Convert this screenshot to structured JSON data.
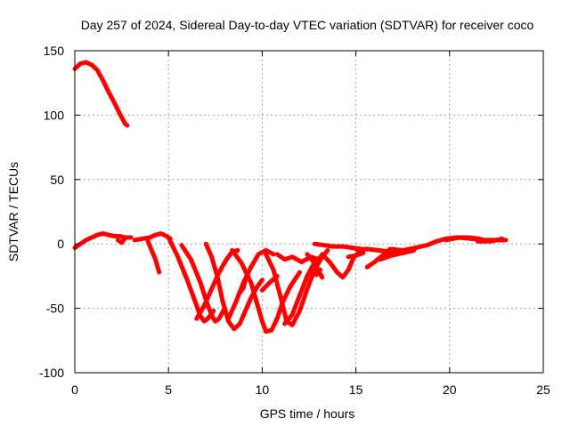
{
  "chart_data": {
    "type": "line",
    "title": "Day 257 of 2024, Sidereal Day-to-day VTEC variation (SDTVAR) for receiver coco",
    "xlabel": "GPS time / hours",
    "ylabel": "SDTVAR / TECUs",
    "xlim": [
      0,
      25
    ],
    "ylim": [
      -100,
      150
    ],
    "xticks": [
      0,
      5,
      10,
      15,
      20,
      25
    ],
    "yticks": [
      -100,
      -50,
      0,
      50,
      100,
      150
    ],
    "grid": true,
    "legend": "none",
    "series_color": "#ff0000",
    "series": [
      {
        "name": "s1",
        "points": [
          [
            0,
            136
          ],
          [
            0.3,
            140
          ],
          [
            0.6,
            141
          ],
          [
            0.9,
            139
          ],
          [
            1.2,
            135
          ],
          [
            1.5,
            127
          ],
          [
            1.8,
            118
          ],
          [
            2.1,
            110
          ],
          [
            2.4,
            101
          ],
          [
            2.7,
            93
          ],
          [
            2.8,
            92
          ]
        ]
      },
      {
        "name": "s2",
        "points": [
          [
            0,
            -3
          ],
          [
            0.3,
            0
          ],
          [
            0.6,
            3
          ],
          [
            0.9,
            5
          ],
          [
            1.2,
            7
          ],
          [
            1.5,
            8
          ],
          [
            1.8,
            7
          ],
          [
            2.1,
            6
          ],
          [
            2.4,
            6
          ],
          [
            2.7,
            5
          ],
          [
            3.0,
            5
          ]
        ]
      },
      {
        "name": "s3",
        "points": [
          [
            2.3,
            3
          ],
          [
            2.5,
            1
          ],
          [
            2.7,
            5
          ]
        ]
      },
      {
        "name": "s4",
        "points": [
          [
            3.2,
            3
          ],
          [
            3.6,
            4
          ],
          [
            4.0,
            5
          ],
          [
            4.3,
            7
          ],
          [
            4.6,
            8
          ],
          [
            4.9,
            6
          ],
          [
            5.1,
            4
          ]
        ]
      },
      {
        "name": "s5",
        "points": [
          [
            3.9,
            2
          ],
          [
            4.1,
            -5
          ],
          [
            4.3,
            -12
          ],
          [
            4.5,
            -22
          ]
        ]
      },
      {
        "name": "s6",
        "points": [
          [
            5.0,
            5
          ],
          [
            5.5,
            -10
          ],
          [
            6.0,
            -28
          ],
          [
            6.4,
            -44
          ],
          [
            6.7,
            -56
          ],
          [
            6.9,
            -60
          ],
          [
            7.1,
            -58
          ],
          [
            7.4,
            -52
          ]
        ]
      },
      {
        "name": "s7",
        "points": [
          [
            5.7,
            -1
          ],
          [
            6.2,
            -12
          ],
          [
            6.7,
            -30
          ],
          [
            7.1,
            -48
          ],
          [
            7.4,
            -58
          ],
          [
            7.5,
            -60
          ],
          [
            7.7,
            -58
          ],
          [
            8.0,
            -50
          ]
        ]
      },
      {
        "name": "s8",
        "points": [
          [
            7.0,
            0
          ],
          [
            7.3,
            -10
          ],
          [
            7.6,
            -25
          ],
          [
            7.9,
            -45
          ],
          [
            8.2,
            -60
          ],
          [
            8.5,
            -66
          ],
          [
            8.8,
            -62
          ],
          [
            9.1,
            -52
          ],
          [
            9.4,
            -42
          ],
          [
            9.7,
            -34
          ],
          [
            10.0,
            -28
          ]
        ]
      },
      {
        "name": "s9",
        "points": [
          [
            6.5,
            -58
          ],
          [
            6.9,
            -48
          ],
          [
            7.3,
            -35
          ],
          [
            7.7,
            -22
          ],
          [
            8.1,
            -12
          ],
          [
            8.4,
            -6
          ],
          [
            8.7,
            -5
          ]
        ]
      },
      {
        "name": "s10",
        "points": [
          [
            8.4,
            -5
          ],
          [
            8.9,
            -15
          ],
          [
            9.4,
            -30
          ],
          [
            9.7,
            -45
          ],
          [
            10.0,
            -60
          ],
          [
            10.2,
            -68
          ],
          [
            10.5,
            -67
          ],
          [
            10.8,
            -58
          ],
          [
            11.1,
            -45
          ],
          [
            11.5,
            -33
          ],
          [
            12.0,
            -22
          ]
        ]
      },
      {
        "name": "s11",
        "points": [
          [
            8.8,
            -38
          ],
          [
            9.0,
            -34
          ],
          [
            9.1,
            -28
          ]
        ]
      },
      {
        "name": "s12",
        "points": [
          [
            8.2,
            -58
          ],
          [
            8.6,
            -45
          ],
          [
            9.0,
            -30
          ],
          [
            9.4,
            -18
          ],
          [
            9.8,
            -8
          ],
          [
            10.2,
            -5
          ],
          [
            10.6,
            -8
          ]
        ]
      },
      {
        "name": "s13",
        "points": [
          [
            10.2,
            -8
          ],
          [
            10.6,
            -20
          ],
          [
            11.0,
            -42
          ],
          [
            11.3,
            -60
          ],
          [
            11.6,
            -63
          ],
          [
            12.0,
            -52
          ],
          [
            12.4,
            -35
          ],
          [
            12.8,
            -20
          ],
          [
            13.2,
            -10
          ],
          [
            13.5,
            -5
          ]
        ]
      },
      {
        "name": "s14",
        "points": [
          [
            10.8,
            -8
          ],
          [
            11.2,
            -12
          ],
          [
            11.6,
            -10
          ],
          [
            12.1,
            -14
          ],
          [
            12.6,
            -10
          ],
          [
            13.0,
            -12
          ]
        ]
      },
      {
        "name": "s15",
        "points": [
          [
            10.0,
            -36
          ],
          [
            10.4,
            -30
          ],
          [
            10.8,
            -25
          ]
        ]
      },
      {
        "name": "s16",
        "points": [
          [
            11.2,
            -62
          ],
          [
            11.6,
            -55
          ],
          [
            12.0,
            -40
          ],
          [
            12.4,
            -25
          ],
          [
            12.8,
            -14
          ],
          [
            13.2,
            -9
          ]
        ]
      },
      {
        "name": "s17",
        "points": [
          [
            12.4,
            -8
          ],
          [
            12.8,
            -15
          ],
          [
            13.2,
            -26
          ]
        ]
      },
      {
        "name": "s18",
        "points": [
          [
            13.2,
            -8
          ],
          [
            13.6,
            -14
          ],
          [
            14.0,
            -22
          ],
          [
            14.3,
            -26
          ],
          [
            14.6,
            -20
          ],
          [
            14.9,
            -10
          ],
          [
            15.3,
            -5
          ]
        ]
      },
      {
        "name": "s19",
        "points": [
          [
            12.8,
            0
          ],
          [
            13.3,
            -1
          ],
          [
            13.8,
            -2
          ],
          [
            14.3,
            -2
          ],
          [
            14.8,
            -3
          ],
          [
            15.3,
            -4
          ]
        ]
      },
      {
        "name": "s20",
        "points": [
          [
            15.0,
            -4
          ],
          [
            15.6,
            -4
          ],
          [
            16.2,
            -5
          ],
          [
            16.8,
            -6
          ],
          [
            17.4,
            -6
          ]
        ]
      },
      {
        "name": "s21",
        "points": [
          [
            12.9,
            -24
          ],
          [
            13.1,
            -20
          ]
        ]
      },
      {
        "name": "s22",
        "points": [
          [
            14.6,
            -10
          ],
          [
            15.0,
            -9
          ],
          [
            15.4,
            -7
          ]
        ]
      },
      {
        "name": "s23",
        "points": [
          [
            15.6,
            -18
          ],
          [
            16.0,
            -14
          ],
          [
            16.5,
            -8
          ],
          [
            17.0,
            -4
          ]
        ]
      },
      {
        "name": "s24",
        "points": [
          [
            16.3,
            -12
          ],
          [
            16.9,
            -9
          ],
          [
            17.5,
            -7
          ],
          [
            18.1,
            -5
          ]
        ]
      },
      {
        "name": "s25",
        "points": [
          [
            16.8,
            -4
          ],
          [
            17.5,
            -5
          ],
          [
            18.2,
            -3
          ],
          [
            18.8,
            -1
          ],
          [
            19.3,
            2
          ],
          [
            19.8,
            4
          ],
          [
            20.4,
            5
          ],
          [
            21.0,
            5
          ],
          [
            21.6,
            4
          ]
        ]
      },
      {
        "name": "s26",
        "points": [
          [
            19.8,
            3
          ],
          [
            20.5,
            5
          ],
          [
            21.2,
            4
          ],
          [
            21.9,
            3
          ],
          [
            22.6,
            3
          ],
          [
            23.0,
            3
          ]
        ]
      },
      {
        "name": "s27",
        "points": [
          [
            21.5,
            2
          ],
          [
            22.2,
            2
          ],
          [
            22.8,
            4
          ]
        ]
      }
    ]
  }
}
